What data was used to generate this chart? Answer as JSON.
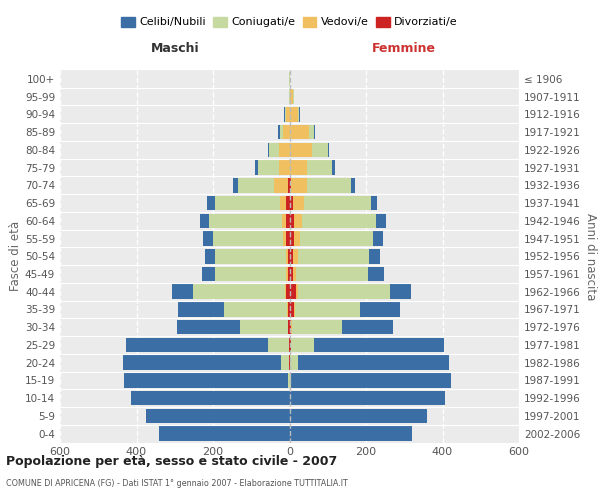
{
  "age_groups": [
    "0-4",
    "5-9",
    "10-14",
    "15-19",
    "20-24",
    "25-29",
    "30-34",
    "35-39",
    "40-44",
    "45-49",
    "50-54",
    "55-59",
    "60-64",
    "65-69",
    "70-74",
    "75-79",
    "80-84",
    "85-89",
    "90-94",
    "95-99",
    "100+"
  ],
  "birth_years": [
    "2002-2006",
    "1997-2001",
    "1992-1996",
    "1987-1991",
    "1982-1986",
    "1977-1981",
    "1972-1976",
    "1967-1971",
    "1962-1966",
    "1957-1961",
    "1952-1956",
    "1947-1951",
    "1942-1946",
    "1937-1941",
    "1932-1936",
    "1927-1931",
    "1922-1926",
    "1917-1921",
    "1912-1916",
    "1907-1911",
    "≤ 1906"
  ],
  "maschi_celibi": [
    340,
    375,
    415,
    430,
    415,
    370,
    165,
    120,
    55,
    35,
    25,
    25,
    25,
    20,
    12,
    8,
    4,
    3,
    2,
    1,
    1
  ],
  "maschi_coniugati": [
    0,
    0,
    0,
    3,
    20,
    55,
    125,
    165,
    240,
    185,
    185,
    185,
    190,
    170,
    95,
    55,
    25,
    8,
    4,
    1,
    1
  ],
  "maschi_vedovi": [
    0,
    0,
    0,
    0,
    0,
    0,
    1,
    2,
    3,
    4,
    5,
    8,
    10,
    15,
    35,
    28,
    28,
    18,
    8,
    0,
    0
  ],
  "maschi_divorziati": [
    0,
    0,
    0,
    0,
    1,
    2,
    3,
    5,
    10,
    5,
    5,
    8,
    10,
    10,
    5,
    0,
    0,
    0,
    0,
    0,
    0
  ],
  "femmine_nubili": [
    320,
    360,
    405,
    420,
    395,
    340,
    135,
    105,
    55,
    40,
    30,
    28,
    25,
    15,
    10,
    8,
    3,
    3,
    2,
    1,
    1
  ],
  "femmine_coniugate": [
    0,
    0,
    2,
    3,
    22,
    58,
    130,
    170,
    240,
    190,
    185,
    190,
    195,
    175,
    115,
    65,
    40,
    12,
    4,
    1,
    0
  ],
  "femmine_vedove": [
    0,
    0,
    0,
    0,
    0,
    1,
    2,
    3,
    5,
    8,
    12,
    15,
    20,
    28,
    42,
    45,
    60,
    52,
    22,
    10,
    0
  ],
  "femmine_divorziate": [
    0,
    0,
    0,
    0,
    1,
    4,
    4,
    12,
    18,
    8,
    10,
    12,
    12,
    10,
    5,
    0,
    0,
    0,
    0,
    0,
    0
  ],
  "color_celibi": "#3a6ea5",
  "color_coniugati": "#c5d9a0",
  "color_vedovi": "#f0c060",
  "color_divorziati": "#cc2222",
  "xlim": 600,
  "title": "Popolazione per età, sesso e stato civile - 2007",
  "subtitle": "COMUNE DI APRICENA (FG) - Dati ISTAT 1° gennaio 2007 - Elaborazione TUTTITALIA.IT",
  "ylabel_left": "Fasce di età",
  "ylabel_right": "Anni di nascita",
  "header_maschi": "Maschi",
  "header_femmine": "Femmine",
  "legend_labels": [
    "Celibi/Nubili",
    "Coniugati/e",
    "Vedovi/e",
    "Divorziati/e"
  ],
  "background_color": "#ffffff",
  "plot_bg": "#ebebeb"
}
